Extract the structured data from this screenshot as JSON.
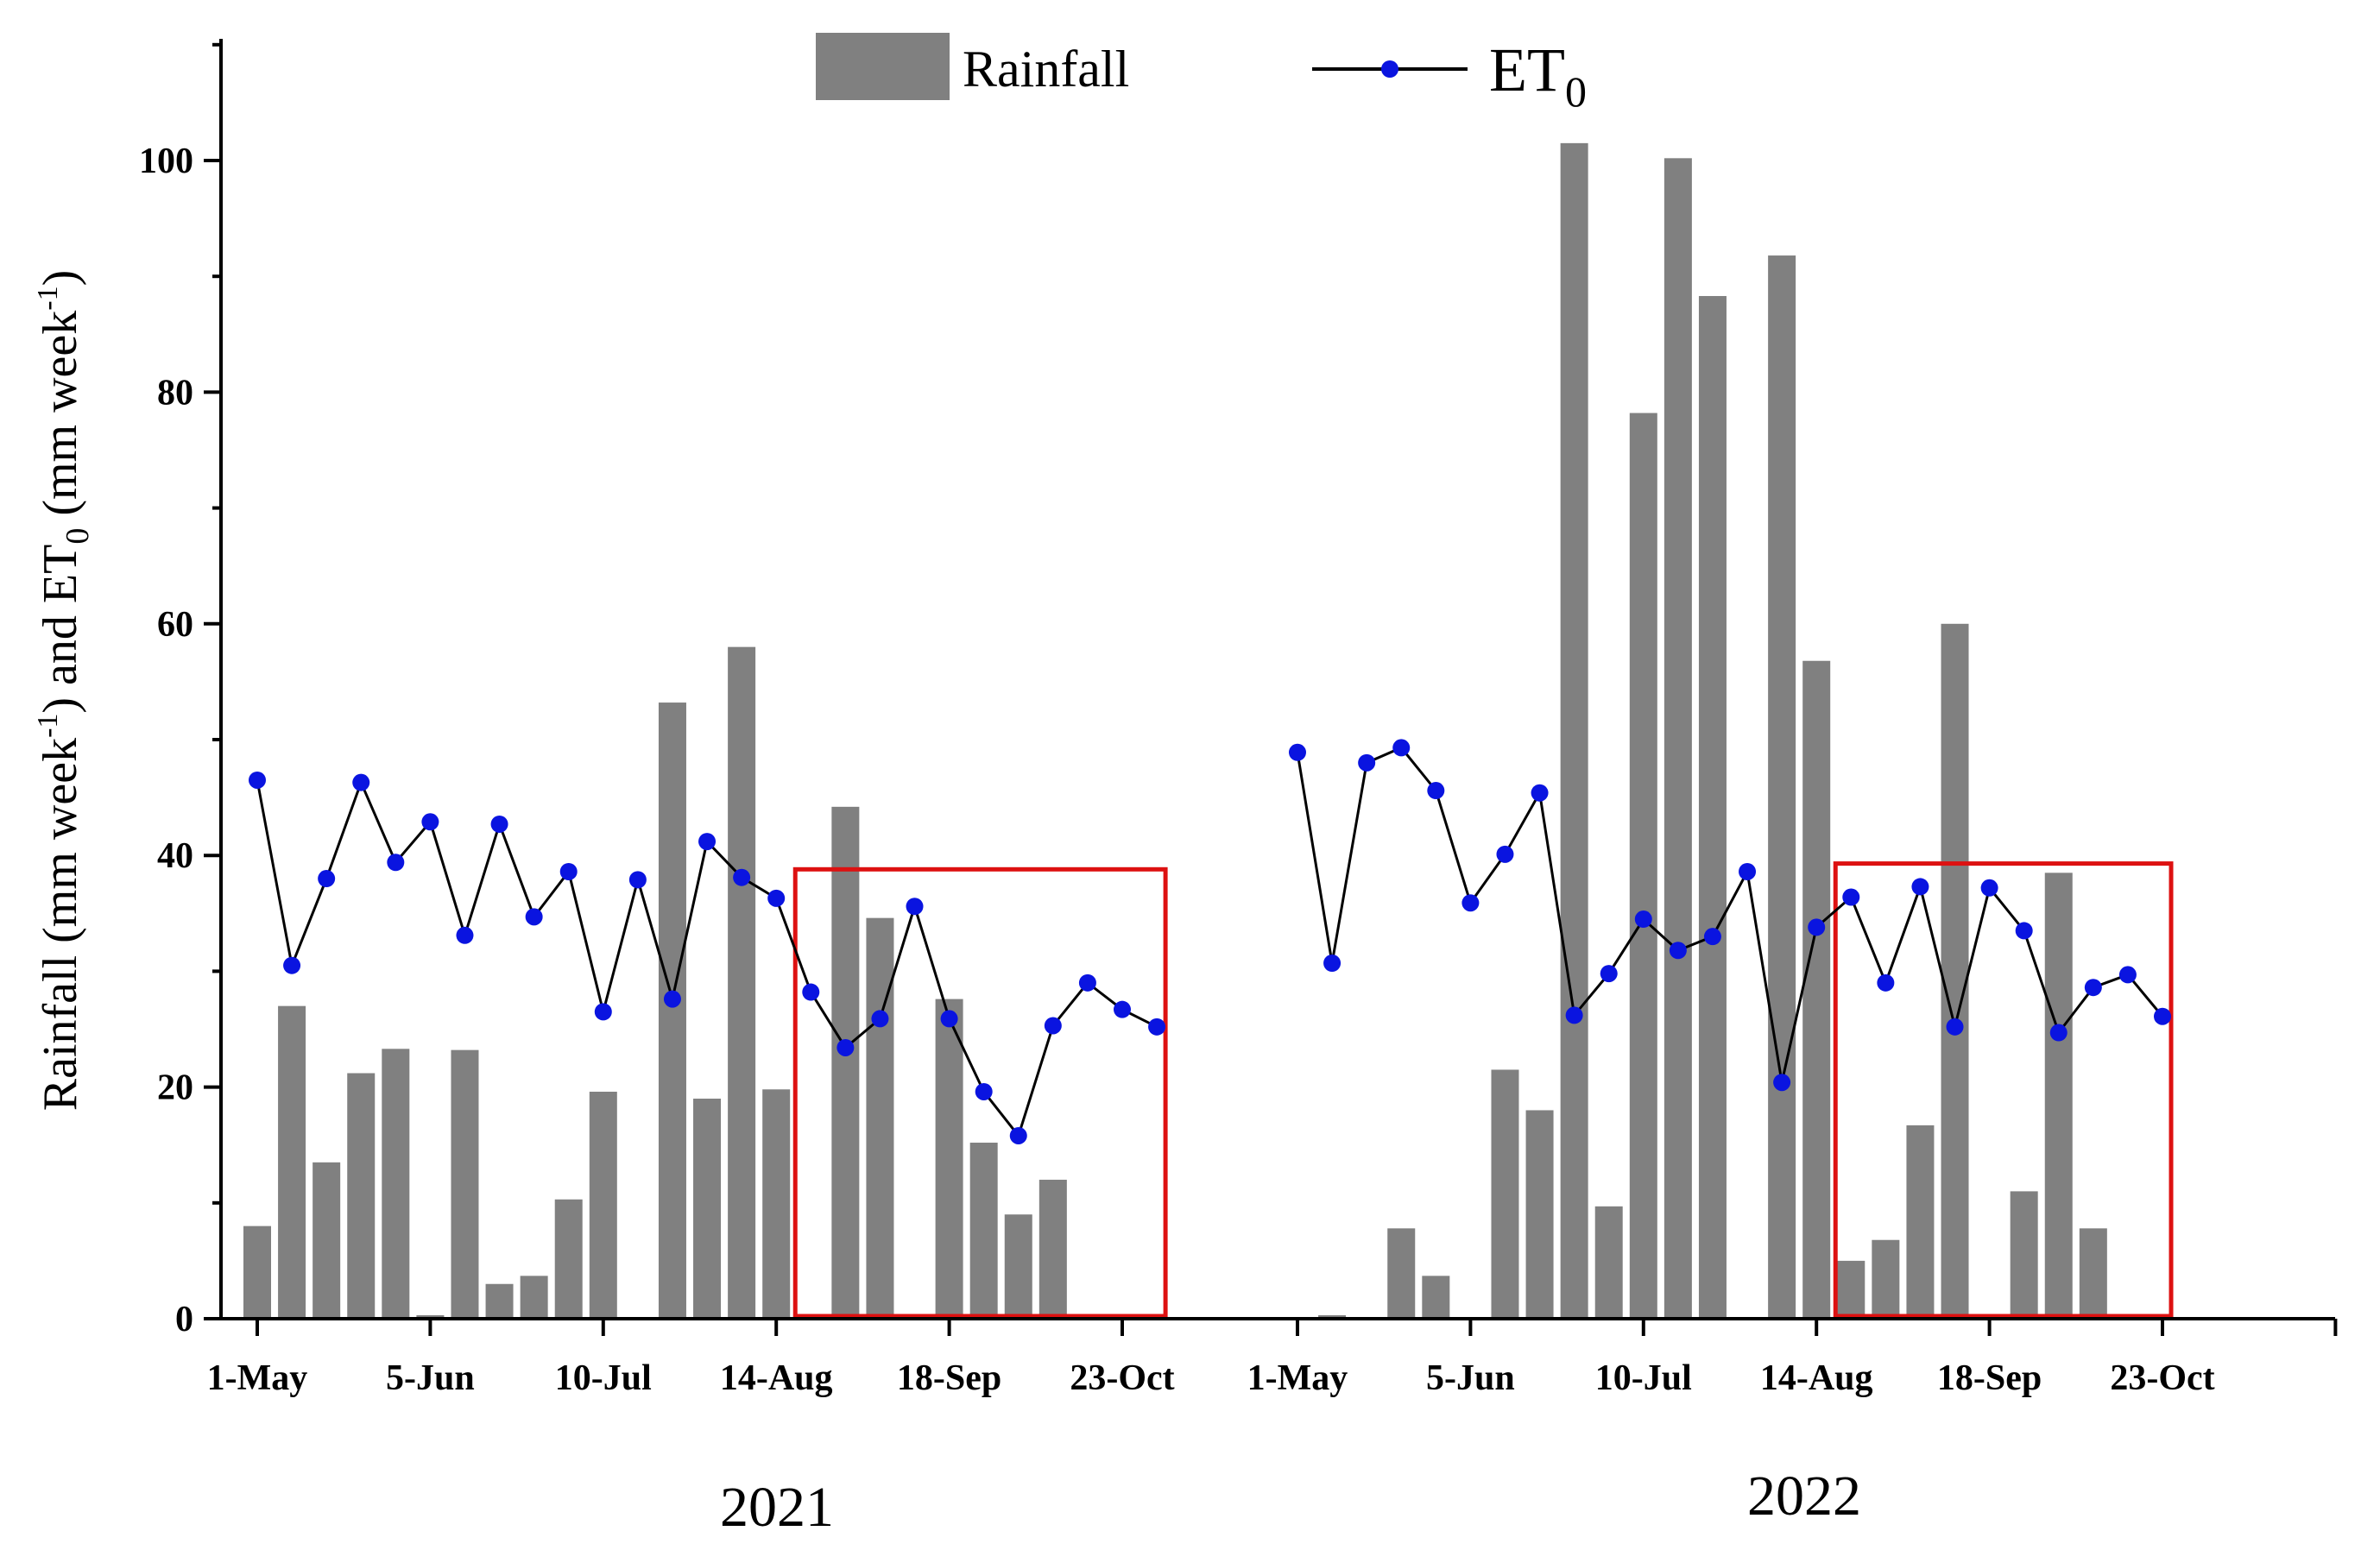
{
  "chart_data": {
    "type": "bar+line",
    "ylabel_parts": [
      "Rainfall (mm week",
      "-1",
      ") and ET",
      "0",
      " (mm week",
      "-1",
      ")"
    ],
    "ylim": [
      0,
      110
    ],
    "yticks": [
      0,
      20,
      40,
      60,
      80,
      100
    ],
    "xticks": {
      "2021": [
        "1-May",
        "5-Jun",
        "10-Jul",
        "14-Aug",
        "18-Sep",
        "23-Oct"
      ],
      "2022": [
        "1-May",
        "5-Jun",
        "10-Jul",
        "14-Aug",
        "18-Sep",
        "23-Oct"
      ]
    },
    "years": [
      "2021",
      "2022"
    ],
    "legend": {
      "rainfall": "Rainfall",
      "et0_main": "ET",
      "et0_sub": "0"
    },
    "colors": {
      "bar": "#808080",
      "line": "#000000",
      "marker": "#0a14e0",
      "highlight_box": "#dd1111"
    },
    "series_2021": {
      "rainfall": [
        8,
        27,
        13.5,
        21.2,
        23.3,
        0.3,
        23.2,
        3,
        3.7,
        10.3,
        19.6,
        0,
        53.2,
        19,
        58,
        19.8,
        0,
        44.2,
        34.6,
        0,
        27.6,
        15.2,
        9,
        12,
        0,
        0,
        0
      ],
      "et0": [
        46.5,
        30.5,
        38,
        46.3,
        39.4,
        42.9,
        33.1,
        42.7,
        34.7,
        38.6,
        26.5,
        37.9,
        27.6,
        41.2,
        38.1,
        36.3,
        28.2,
        23.4,
        25.9,
        35.6,
        25.9,
        19.6,
        15.8,
        25.3,
        29,
        26.7,
        25.2
      ]
    },
    "series_2022": {
      "rainfall": [
        0,
        0.3,
        0,
        7.8,
        3.7,
        0,
        21.5,
        18,
        101.5,
        9.7,
        78.2,
        100.2,
        88.3,
        0,
        91.8,
        56.8,
        5,
        6.8,
        16.7,
        60,
        0,
        11,
        38.5,
        7.8,
        0,
        0
      ],
      "et0": [
        48.9,
        30.7,
        48,
        49.3,
        45.6,
        35.9,
        40.1,
        45.4,
        26.2,
        29.8,
        34.5,
        31.8,
        33,
        38.6,
        20.4,
        33.8,
        36.4,
        29,
        37.3,
        25.2,
        37.2,
        33.5,
        24.7,
        28.6,
        29.7,
        26.1
      ]
    },
    "highlight_boxes": [
      {
        "year": "2021",
        "from_week": 16,
        "to_week": 26,
        "ymax": 38.8
      },
      {
        "year": "2022",
        "from_week": 16,
        "to_week": 25,
        "ymax": 39.3
      }
    ]
  }
}
